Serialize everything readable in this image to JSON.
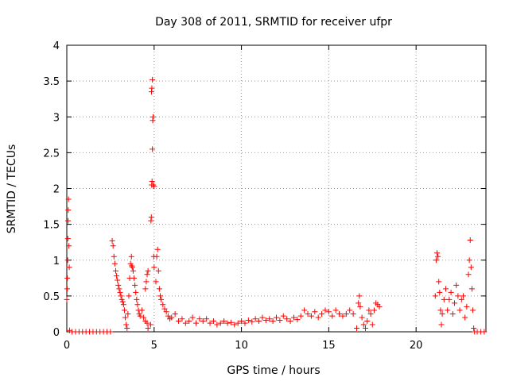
{
  "chart_data": {
    "type": "scatter",
    "title": "Day 308 of 2011, SRMTID for receiver ufpr",
    "xlabel": "GPS time / hours",
    "ylabel": "SRMTID / TECUs",
    "xlim": [
      0,
      24
    ],
    "ylim": [
      0,
      4
    ],
    "xticks": [
      0,
      5,
      10,
      15,
      20
    ],
    "yticks": [
      0,
      0.5,
      1,
      1.5,
      2,
      2.5,
      3,
      3.5,
      4
    ],
    "xtick_labels": [
      "0",
      "5",
      "10",
      "15",
      "20"
    ],
    "ytick_labels": [
      "0",
      "0.5",
      "1",
      "1.5",
      "2",
      "2.5",
      "3",
      "3.5",
      "4"
    ],
    "grid": true,
    "marker": "+",
    "marker_color": "#ff0000",
    "series": [
      {
        "name": "SRMTID",
        "points": [
          [
            0.0,
            0.45
          ],
          [
            0.02,
            0.6
          ],
          [
            0.03,
            0.75
          ],
          [
            0.05,
            1.0
          ],
          [
            0.06,
            1.3
          ],
          [
            0.07,
            1.55
          ],
          [
            0.08,
            1.7
          ],
          [
            0.1,
            1.85
          ],
          [
            0.12,
            1.2
          ],
          [
            0.14,
            0.9
          ],
          [
            0.16,
            0.02
          ],
          [
            0.3,
            0.0
          ],
          [
            0.5,
            0.0
          ],
          [
            0.7,
            0.0
          ],
          [
            0.9,
            0.0
          ],
          [
            1.1,
            0.0
          ],
          [
            1.3,
            0.0
          ],
          [
            1.5,
            0.0
          ],
          [
            1.7,
            0.0
          ],
          [
            1.9,
            0.0
          ],
          [
            2.1,
            0.0
          ],
          [
            2.3,
            0.0
          ],
          [
            2.5,
            0.0
          ],
          [
            2.6,
            1.27
          ],
          [
            2.65,
            1.2
          ],
          [
            2.7,
            1.05
          ],
          [
            2.75,
            0.95
          ],
          [
            2.8,
            0.85
          ],
          [
            2.85,
            0.78
          ],
          [
            2.9,
            0.72
          ],
          [
            2.95,
            0.65
          ],
          [
            3.0,
            0.6
          ],
          [
            3.05,
            0.55
          ],
          [
            3.1,
            0.5
          ],
          [
            3.15,
            0.45
          ],
          [
            3.2,
            0.42
          ],
          [
            3.25,
            0.38
          ],
          [
            3.3,
            0.3
          ],
          [
            3.35,
            0.2
          ],
          [
            3.4,
            0.1
          ],
          [
            3.45,
            0.05
          ],
          [
            3.5,
            0.25
          ],
          [
            3.55,
            0.5
          ],
          [
            3.6,
            0.75
          ],
          [
            3.65,
            0.95
          ],
          [
            3.7,
            1.05
          ],
          [
            3.72,
            0.92
          ],
          [
            3.75,
            0.9
          ],
          [
            3.8,
            0.85
          ],
          [
            3.85,
            0.75
          ],
          [
            3.9,
            0.65
          ],
          [
            3.95,
            0.55
          ],
          [
            4.0,
            0.45
          ],
          [
            4.05,
            0.38
          ],
          [
            4.1,
            0.3
          ],
          [
            4.15,
            0.25
          ],
          [
            4.2,
            0.22
          ],
          [
            4.3,
            0.3
          ],
          [
            4.4,
            0.2
          ],
          [
            4.5,
            0.15
          ],
          [
            4.6,
            0.12
          ],
          [
            4.65,
            0.05
          ],
          [
            4.5,
            0.6
          ],
          [
            4.55,
            0.7
          ],
          [
            4.6,
            0.8
          ],
          [
            4.65,
            0.85
          ],
          [
            4.8,
            0.1
          ],
          [
            4.82,
            1.55
          ],
          [
            4.84,
            1.6
          ],
          [
            4.86,
            2.05
          ],
          [
            4.88,
            2.1
          ],
          [
            4.9,
            2.55
          ],
          [
            4.92,
            2.95
          ],
          [
            4.94,
            3.0
          ],
          [
            4.85,
            3.35
          ],
          [
            4.87,
            3.4
          ],
          [
            4.9,
            3.52
          ],
          [
            4.95,
            2.05
          ],
          [
            5.0,
            2.03
          ],
          [
            5.0,
            0.9
          ],
          [
            4.98,
            1.05
          ],
          [
            5.1,
            0.7
          ],
          [
            5.15,
            1.05
          ],
          [
            5.2,
            1.15
          ],
          [
            5.25,
            0.85
          ],
          [
            5.3,
            0.6
          ],
          [
            5.35,
            0.5
          ],
          [
            5.4,
            0.45
          ],
          [
            5.5,
            0.38
          ],
          [
            5.6,
            0.32
          ],
          [
            5.7,
            0.28
          ],
          [
            5.8,
            0.22
          ],
          [
            5.9,
            0.18
          ],
          [
            6.0,
            0.2
          ],
          [
            6.2,
            0.25
          ],
          [
            6.4,
            0.15
          ],
          [
            6.6,
            0.18
          ],
          [
            6.8,
            0.12
          ],
          [
            7.0,
            0.15
          ],
          [
            7.2,
            0.2
          ],
          [
            7.4,
            0.12
          ],
          [
            7.6,
            0.18
          ],
          [
            7.8,
            0.15
          ],
          [
            8.0,
            0.18
          ],
          [
            8.2,
            0.12
          ],
          [
            8.4,
            0.15
          ],
          [
            8.6,
            0.1
          ],
          [
            8.8,
            0.12
          ],
          [
            9.0,
            0.15
          ],
          [
            9.2,
            0.12
          ],
          [
            9.4,
            0.13
          ],
          [
            9.6,
            0.1
          ],
          [
            9.8,
            0.12
          ],
          [
            10.0,
            0.15
          ],
          [
            10.2,
            0.12
          ],
          [
            10.4,
            0.16
          ],
          [
            10.6,
            0.14
          ],
          [
            10.8,
            0.18
          ],
          [
            11.0,
            0.15
          ],
          [
            11.2,
            0.2
          ],
          [
            11.4,
            0.16
          ],
          [
            11.6,
            0.18
          ],
          [
            11.8,
            0.15
          ],
          [
            12.0,
            0.2
          ],
          [
            12.2,
            0.16
          ],
          [
            12.4,
            0.22
          ],
          [
            12.6,
            0.18
          ],
          [
            12.8,
            0.15
          ],
          [
            13.0,
            0.2
          ],
          [
            13.2,
            0.17
          ],
          [
            13.4,
            0.22
          ],
          [
            13.6,
            0.3
          ],
          [
            13.8,
            0.25
          ],
          [
            14.0,
            0.22
          ],
          [
            14.2,
            0.28
          ],
          [
            14.4,
            0.2
          ],
          [
            14.6,
            0.25
          ],
          [
            14.8,
            0.3
          ],
          [
            15.0,
            0.28
          ],
          [
            15.2,
            0.22
          ],
          [
            15.4,
            0.3
          ],
          [
            15.6,
            0.25
          ],
          [
            15.8,
            0.22
          ],
          [
            16.0,
            0.25
          ],
          [
            16.2,
            0.3
          ],
          [
            16.4,
            0.25
          ],
          [
            16.6,
            0.05
          ],
          [
            16.7,
            0.4
          ],
          [
            16.75,
            0.5
          ],
          [
            16.8,
            0.35
          ],
          [
            16.9,
            0.2
          ],
          [
            17.0,
            0.1
          ],
          [
            17.1,
            0.05
          ],
          [
            17.2,
            0.15
          ],
          [
            17.3,
            0.3
          ],
          [
            17.4,
            0.25
          ],
          [
            17.5,
            0.1
          ],
          [
            17.6,
            0.3
          ],
          [
            17.7,
            0.4
          ],
          [
            17.8,
            0.38
          ],
          [
            17.9,
            0.35
          ],
          [
            21.1,
            0.5
          ],
          [
            21.15,
            1.0
          ],
          [
            21.2,
            1.1
          ],
          [
            21.25,
            1.05
          ],
          [
            21.3,
            0.7
          ],
          [
            21.35,
            0.55
          ],
          [
            21.4,
            0.3
          ],
          [
            21.45,
            0.1
          ],
          [
            21.5,
            0.25
          ],
          [
            21.6,
            0.45
          ],
          [
            21.7,
            0.6
          ],
          [
            21.8,
            0.3
          ],
          [
            21.9,
            0.45
          ],
          [
            22.0,
            0.55
          ],
          [
            22.1,
            0.25
          ],
          [
            22.2,
            0.4
          ],
          [
            22.3,
            0.65
          ],
          [
            22.4,
            0.5
          ],
          [
            22.5,
            0.3
          ],
          [
            22.6,
            0.45
          ],
          [
            22.7,
            0.5
          ],
          [
            22.8,
            0.2
          ],
          [
            22.9,
            0.35
          ],
          [
            23.0,
            0.8
          ],
          [
            23.05,
            1.0
          ],
          [
            23.1,
            1.28
          ],
          [
            23.15,
            0.9
          ],
          [
            23.2,
            0.6
          ],
          [
            23.25,
            0.3
          ],
          [
            23.3,
            0.05
          ],
          [
            23.35,
            0.0
          ],
          [
            23.5,
            0.0
          ],
          [
            23.7,
            0.0
          ],
          [
            23.9,
            0.0
          ]
        ]
      }
    ]
  }
}
